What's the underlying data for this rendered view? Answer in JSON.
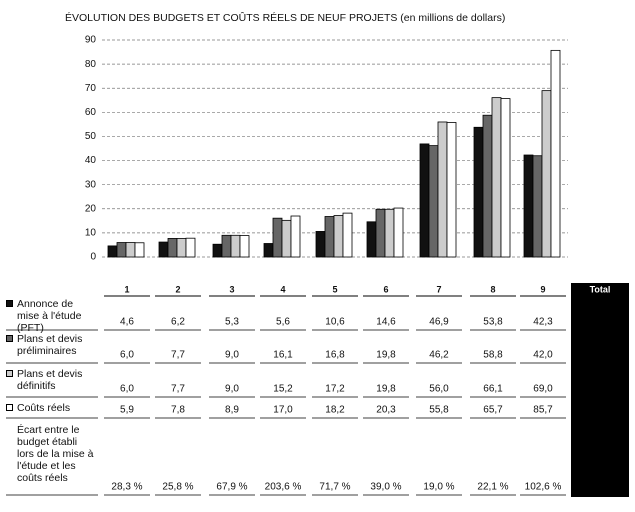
{
  "chart_data": {
    "type": "bar",
    "title": "ÉVOLUTION DES BUDGETS ET COÛTS RÉELS DE NEUF PROJETS (en millions de dollars)",
    "categories": [
      "1",
      "2",
      "3",
      "4",
      "5",
      "6",
      "7",
      "8",
      "9"
    ],
    "total_label": "Total",
    "ylim": [
      0,
      90
    ],
    "yticks": [
      0,
      10,
      20,
      30,
      40,
      50,
      60,
      70,
      80,
      90
    ],
    "grid": true,
    "series": [
      {
        "name": "Annonce de mise à l'étude (PFT)",
        "color": "#111111",
        "values": [
          4.6,
          6.2,
          5.3,
          5.6,
          10.6,
          14.6,
          46.9,
          53.8,
          42.3
        ],
        "value_labels": [
          "4,6",
          "6,2",
          "5,3",
          "5,6",
          "10,6",
          "14,6",
          "46,9",
          "53,8",
          "42,3"
        ]
      },
      {
        "name": "Plans et devis préliminaires",
        "color": "#666666",
        "values": [
          6.0,
          7.7,
          9.0,
          16.1,
          16.8,
          19.8,
          46.2,
          58.8,
          42.0
        ],
        "value_labels": [
          "6,0",
          "7,7",
          "9,0",
          "16,1",
          "16,8",
          "19,8",
          "46,2",
          "58,8",
          "42,0"
        ]
      },
      {
        "name": "Plans et devis définitifs",
        "color": "#cccccc",
        "values": [
          6.0,
          7.7,
          9.0,
          15.2,
          17.2,
          19.8,
          56.0,
          66.1,
          69.0
        ],
        "value_labels": [
          "6,0",
          "7,7",
          "9,0",
          "15,2",
          "17,2",
          "19,8",
          "56,0",
          "66,1",
          "69,0"
        ]
      },
      {
        "name": "Coûts réels",
        "color": "#ffffff",
        "values": [
          5.9,
          7.8,
          8.9,
          17.0,
          18.2,
          20.3,
          55.8,
          65.7,
          85.7
        ],
        "value_labels": [
          "5,9",
          "7,8",
          "8,9",
          "17,0",
          "18,2",
          "20,3",
          "55,8",
          "65,7",
          "85,7"
        ]
      }
    ],
    "difference_row": {
      "name": "Écart entre le budget établi lors de la mise à l'étude et les coûts réels",
      "values": [
        28.3,
        25.8,
        67.9,
        203.6,
        71.7,
        39.0,
        19.0,
        22.1,
        102.6
      ],
      "value_labels": [
        "28,3 %",
        "25,8 %",
        "67,9 %",
        "203,6 %",
        "71,7 %",
        "39,0 %",
        "19,0 %",
        "22,1 %",
        "102,6 %"
      ]
    }
  }
}
